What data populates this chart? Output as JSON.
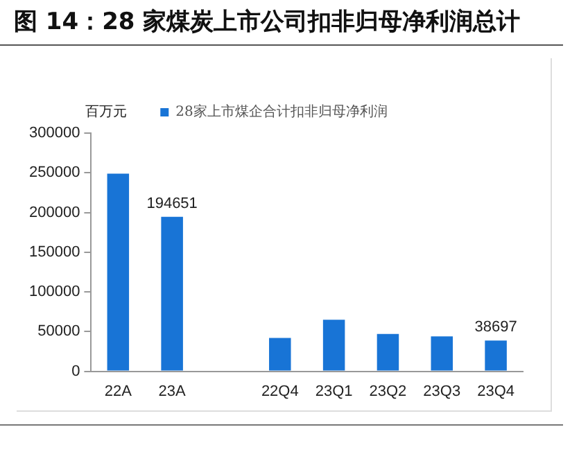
{
  "chart_data": {
    "type": "bar",
    "title": "图 14：28 家煤炭上市公司扣非归母净利润总计",
    "ylabel": "百万元",
    "categories": [
      "22A",
      "23A",
      null,
      "22Q4",
      "23Q1",
      "23Q2",
      "23Q3",
      "23Q4"
    ],
    "series": [
      {
        "name": "28家上市煤企合计扣非归母净利润",
        "color": "#1874d6",
        "values": [
          249000,
          194651,
          null,
          42000,
          65000,
          47000,
          44000,
          38697
        ],
        "value_labels": [
          null,
          "194651",
          null,
          null,
          null,
          null,
          null,
          "38697"
        ]
      }
    ],
    "ylim": [
      0,
      300000
    ],
    "yticks": [
      0,
      50000,
      100000,
      150000,
      200000,
      250000,
      300000
    ],
    "grid": false,
    "legend": "top"
  }
}
